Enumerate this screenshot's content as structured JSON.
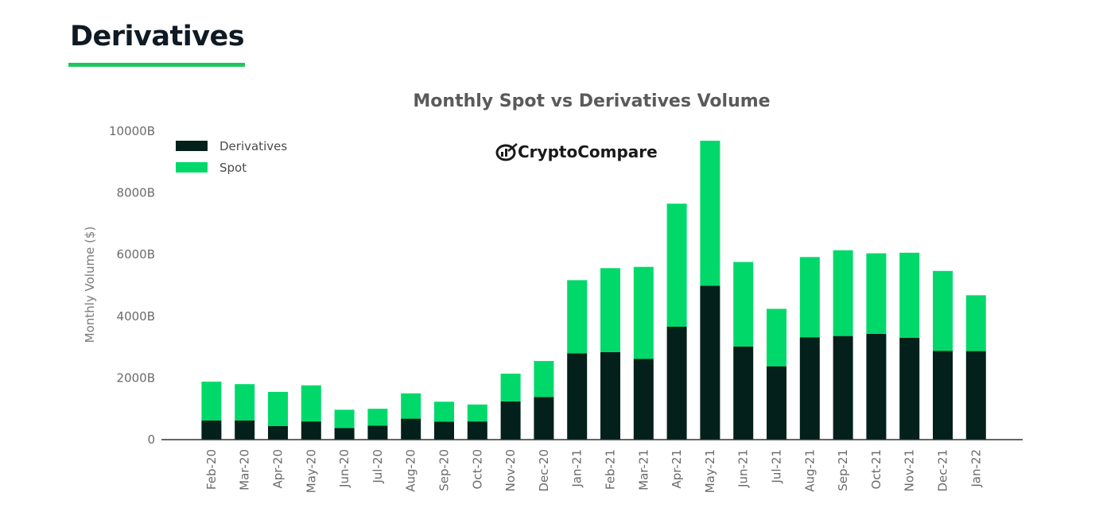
{
  "page": {
    "title": "Derivatives",
    "accent_color": "#1ec75d"
  },
  "logo": {
    "text": "CryptoCompare",
    "icon": "cryptocompare-logo-icon"
  },
  "chart_data": {
    "type": "bar",
    "stacked": true,
    "title": "Monthly Spot vs Derivatives Volume",
    "xlabel": "",
    "ylabel": "Monthly Volume ($)",
    "ylim": [
      0,
      10000
    ],
    "yticks": [
      0,
      2000,
      4000,
      6000,
      8000,
      10000
    ],
    "ytick_labels": [
      "0",
      "2000B",
      "4000B",
      "6000B",
      "8000B",
      "10000B"
    ],
    "grid": false,
    "legend_position": "top-left",
    "categories": [
      "Feb-20",
      "Mar-20",
      "Apr-20",
      "May-20",
      "Jun-20",
      "Jul-20",
      "Aug-20",
      "Sep-20",
      "Oct-20",
      "Nov-20",
      "Dec-20",
      "Jan-21",
      "Feb-21",
      "Mar-21",
      "Apr-21",
      "May-21",
      "Jun-21",
      "Jul-21",
      "Aug-21",
      "Sep-21",
      "Oct-21",
      "Nov-21",
      "Dec-21",
      "Jan-22"
    ],
    "series": [
      {
        "name": "Derivatives",
        "color": "#03201a",
        "values": [
          620,
          620,
          440,
          590,
          380,
          450,
          680,
          580,
          590,
          1240,
          1380,
          2800,
          2840,
          2620,
          3660,
          4990,
          3020,
          2380,
          3320,
          3360,
          3430,
          3300,
          2880,
          2870
        ]
      },
      {
        "name": "Spot",
        "color": "#00d96a",
        "values": [
          1260,
          1180,
          1110,
          1170,
          590,
          550,
          820,
          650,
          550,
          900,
          1170,
          2370,
          2720,
          2980,
          3990,
          4700,
          2740,
          1860,
          2600,
          2780,
          2610,
          2760,
          2590,
          1810
        ]
      }
    ]
  }
}
